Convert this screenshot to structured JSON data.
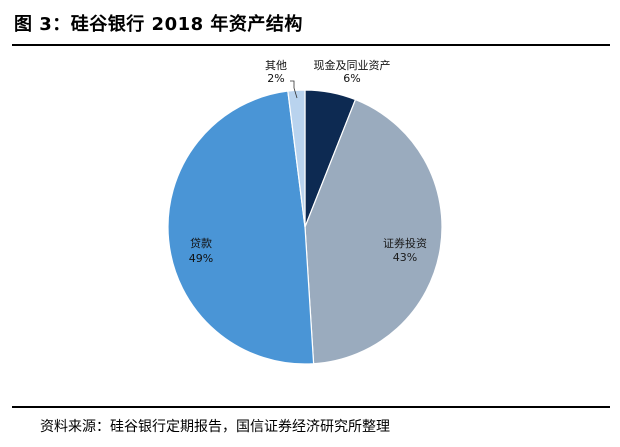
{
  "header": {
    "title": "图 3：硅谷银行 2018 年资产结构"
  },
  "footer": {
    "source": "资料来源：硅谷银行定期报告，国信证券经济研究所整理"
  },
  "chart_data": {
    "type": "pie",
    "slices": [
      {
        "name": "现金及同业资产",
        "value": 6,
        "pct_label": "6%",
        "color": "#0d2a52"
      },
      {
        "name": "证券投资",
        "value": 43,
        "pct_label": "43%",
        "color": "#9aabbe"
      },
      {
        "name": "贷款",
        "value": 49,
        "pct_label": "49%",
        "color": "#4a95d6"
      },
      {
        "name": "其他",
        "value": 2,
        "pct_label": "2%",
        "color": "#b9d3ee"
      }
    ]
  }
}
